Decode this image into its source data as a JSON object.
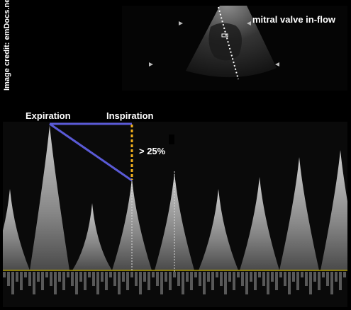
{
  "labels": {
    "credit": "Image credit: emDocs.net",
    "mitral": "mitral valve in-flow",
    "expiration": "Expiration",
    "inspiration": "Inspiration",
    "percent": "> 25%"
  },
  "colors": {
    "annotation_line": "#5a5ad6",
    "dashed_marker": "#f2b01e",
    "baseline": "#c8b400",
    "text": "#ffffff"
  }
}
